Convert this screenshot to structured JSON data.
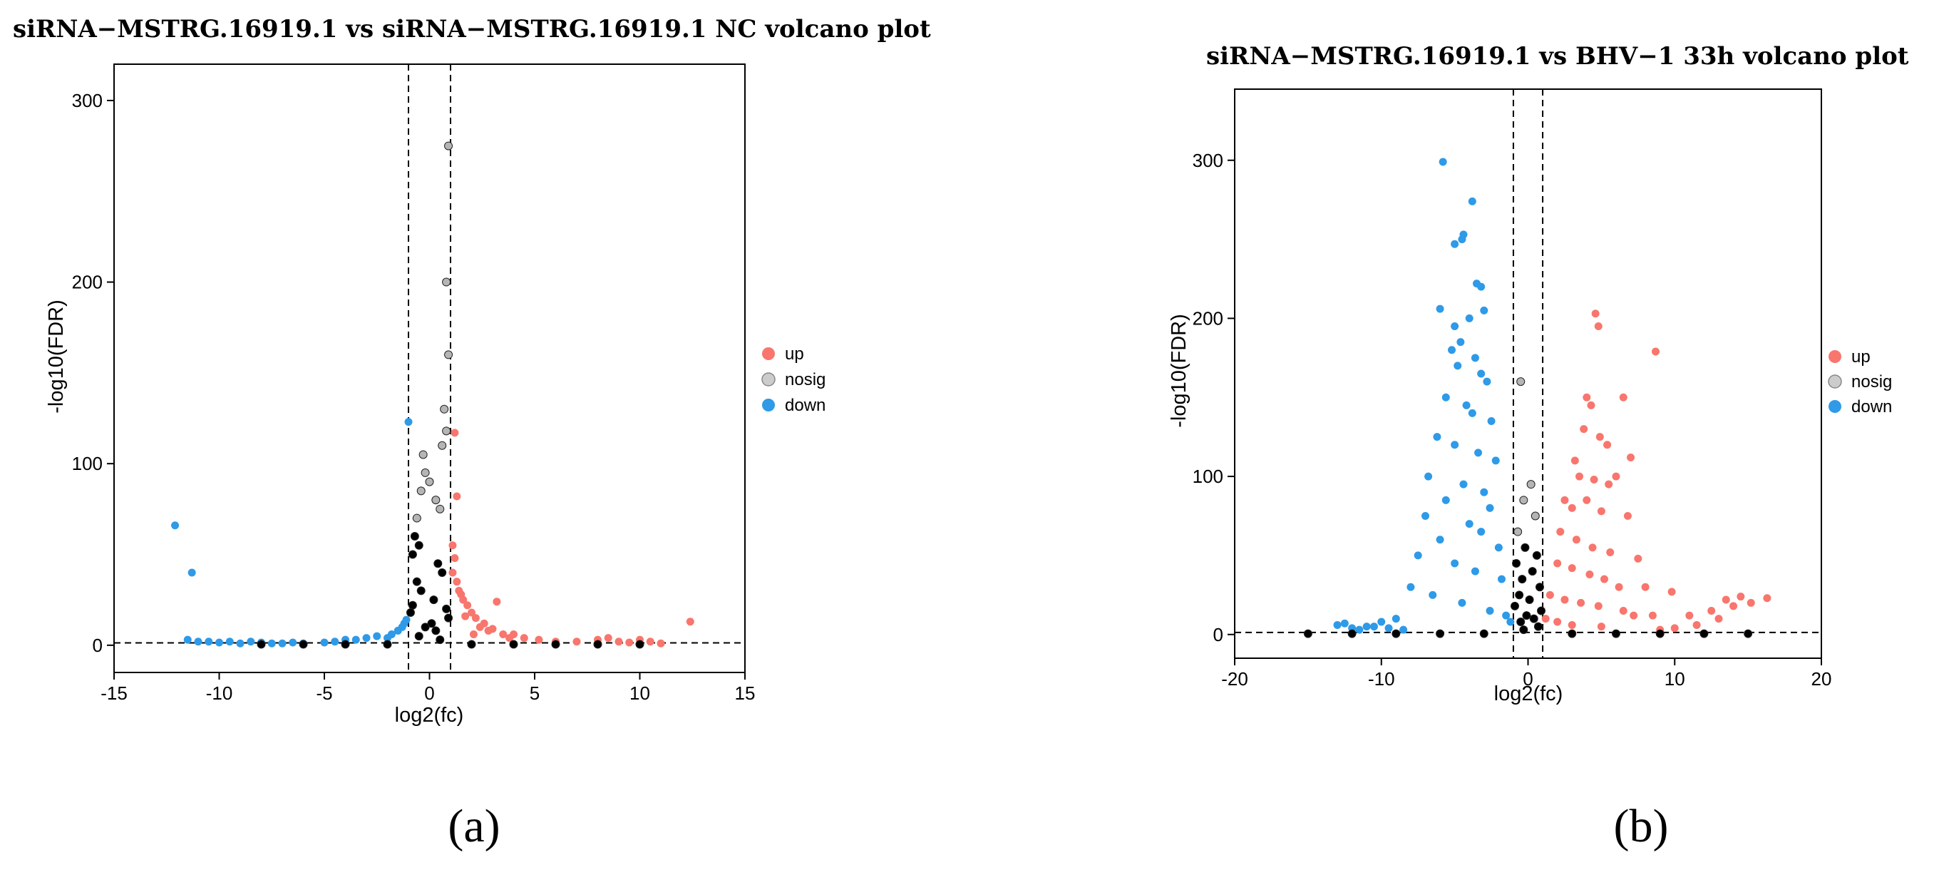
{
  "figure": {
    "panel_labels": [
      "(a)",
      "(b)"
    ]
  },
  "colors": {
    "up": "#f8766d",
    "nosig": "#000000",
    "down": "#2e9ae8"
  },
  "chart_data": [
    {
      "type": "scatter",
      "title": "siRNA−MSTRG.16919.1 vs siRNA−MSTRG.16919.1 NC volcano plot",
      "xlabel": "log2(fc)",
      "ylabel": "-log10(FDR)",
      "xlim": [
        -15,
        15
      ],
      "ylim": [
        -15,
        320
      ],
      "xticks": [
        -15,
        -10,
        -5,
        0,
        5,
        10,
        15
      ],
      "yticks": [
        0,
        100,
        200,
        300
      ],
      "thresholds": {
        "vertical": [
          -1,
          1
        ],
        "horizontal": 1.3
      },
      "grid": false,
      "legend": {
        "position": "right",
        "entries": [
          "up",
          "nosig",
          "down"
        ]
      },
      "series": [
        {
          "name": "up",
          "color": "#f8766d",
          "points": [
            [
              1.1,
              40
            ],
            [
              1.3,
              35
            ],
            [
              1.5,
              28
            ],
            [
              1.8,
              22
            ],
            [
              2.0,
              18
            ],
            [
              2.2,
              15
            ],
            [
              2.6,
              12
            ],
            [
              3.0,
              9
            ],
            [
              3.5,
              6
            ],
            [
              1.2,
              48
            ],
            [
              1.4,
              30
            ],
            [
              1.6,
              25
            ],
            [
              2.4,
              10
            ],
            [
              2.8,
              8
            ],
            [
              3.2,
              24
            ],
            [
              4.0,
              6
            ],
            [
              4.5,
              4
            ],
            [
              5.2,
              3
            ],
            [
              6.0,
              2
            ],
            [
              7.0,
              2
            ],
            [
              8.0,
              3
            ],
            [
              8.5,
              4
            ],
            [
              9.0,
              2
            ],
            [
              9.5,
              1.5
            ],
            [
              10.0,
              3
            ],
            [
              10.5,
              2
            ],
            [
              11.0,
              1
            ],
            [
              12.4,
              13
            ],
            [
              1.2,
              117
            ],
            [
              1.3,
              82
            ],
            [
              1.1,
              55
            ],
            [
              1.7,
              16
            ],
            [
              2.1,
              6
            ],
            [
              3.8,
              4
            ]
          ]
        },
        {
          "name": "down",
          "color": "#2e9ae8",
          "points": [
            [
              -12.1,
              66
            ],
            [
              -11.3,
              40
            ],
            [
              -11.5,
              3
            ],
            [
              -11.0,
              2
            ],
            [
              -10.5,
              2
            ],
            [
              -10.0,
              1.5
            ],
            [
              -9.5,
              2
            ],
            [
              -9.0,
              1
            ],
            [
              -8.5,
              2
            ],
            [
              -8.0,
              1.5
            ],
            [
              -7.5,
              1
            ],
            [
              -7.0,
              1
            ],
            [
              -6.5,
              1.5
            ],
            [
              -6.0,
              1
            ],
            [
              -5.0,
              1.5
            ],
            [
              -4.5,
              2
            ],
            [
              -4.0,
              3
            ],
            [
              -3.5,
              3
            ],
            [
              -3.0,
              4
            ],
            [
              -2.5,
              5
            ],
            [
              -2.0,
              4
            ],
            [
              -1.8,
              6
            ],
            [
              -1.5,
              8
            ],
            [
              -1.3,
              10
            ],
            [
              -1.2,
              12
            ],
            [
              -1.1,
              14
            ],
            [
              -1.0,
              123
            ]
          ]
        },
        {
          "name": "nosig",
          "color": "#000000",
          "points": [
            [
              0.9,
              275
            ],
            [
              0.8,
              200
            ],
            [
              0.9,
              160
            ],
            [
              0.7,
              130
            ],
            [
              0.8,
              118
            ],
            [
              0.6,
              110
            ],
            [
              -0.3,
              105
            ],
            [
              -0.2,
              95
            ],
            [
              0.0,
              90
            ],
            [
              -0.4,
              85
            ],
            [
              0.3,
              80
            ],
            [
              0.5,
              75
            ],
            [
              -0.6,
              70
            ],
            [
              -0.7,
              60
            ],
            [
              -0.5,
              55
            ],
            [
              -0.8,
              50
            ],
            [
              0.4,
              45
            ],
            [
              0.6,
              40
            ],
            [
              -0.6,
              35
            ],
            [
              -0.4,
              30
            ],
            [
              0.2,
              25
            ],
            [
              -0.8,
              22
            ],
            [
              0.8,
              20
            ],
            [
              -0.9,
              18
            ],
            [
              0.9,
              15
            ],
            [
              0.1,
              12
            ],
            [
              -0.2,
              10
            ],
            [
              0.3,
              8
            ],
            [
              -0.5,
              5
            ],
            [
              0.5,
              3
            ],
            [
              -8.0,
              0.5
            ],
            [
              -6.0,
              0.5
            ],
            [
              -4.0,
              0.5
            ],
            [
              -2.0,
              0.5
            ],
            [
              2.0,
              0.5
            ],
            [
              4.0,
              0.5
            ],
            [
              6.0,
              0.5
            ],
            [
              8.0,
              0.5
            ],
            [
              10.0,
              0.5
            ]
          ]
        }
      ]
    },
    {
      "type": "scatter",
      "title": "siRNA−MSTRG.16919.1 vs BHV−1 33h volcano plot",
      "xlabel": "log2(fc)",
      "ylabel": "-log10(FDR)",
      "xlim": [
        -20,
        20
      ],
      "ylim": [
        -15,
        345
      ],
      "xticks": [
        -20,
        -10,
        0,
        10,
        20
      ],
      "yticks": [
        0,
        100,
        200,
        300
      ],
      "thresholds": {
        "vertical": [
          -1,
          1
        ],
        "horizontal": 1.3
      },
      "grid": false,
      "legend": {
        "position": "right",
        "entries": [
          "up",
          "nosig",
          "down"
        ]
      },
      "series": [
        {
          "name": "up",
          "color": "#f8766d",
          "points": [
            [
              4.6,
              203
            ],
            [
              4.8,
              195
            ],
            [
              8.7,
              179
            ],
            [
              4.0,
              150
            ],
            [
              4.3,
              145
            ],
            [
              6.5,
              150
            ],
            [
              3.8,
              130
            ],
            [
              4.9,
              125
            ],
            [
              5.4,
              120
            ],
            [
              3.2,
              110
            ],
            [
              7.0,
              112
            ],
            [
              3.5,
              100
            ],
            [
              4.5,
              98
            ],
            [
              5.5,
              95
            ],
            [
              6.0,
              100
            ],
            [
              2.5,
              85
            ],
            [
              3.0,
              80
            ],
            [
              4.0,
              85
            ],
            [
              5.0,
              78
            ],
            [
              6.8,
              75
            ],
            [
              2.2,
              65
            ],
            [
              3.3,
              60
            ],
            [
              4.4,
              55
            ],
            [
              5.6,
              52
            ],
            [
              7.5,
              48
            ],
            [
              2.0,
              45
            ],
            [
              3.0,
              42
            ],
            [
              4.2,
              38
            ],
            [
              5.2,
              35
            ],
            [
              6.2,
              30
            ],
            [
              8.0,
              30
            ],
            [
              9.8,
              27
            ],
            [
              1.5,
              25
            ],
            [
              2.5,
              22
            ],
            [
              3.6,
              20
            ],
            [
              4.8,
              18
            ],
            [
              6.5,
              15
            ],
            [
              7.2,
              12
            ],
            [
              8.5,
              12
            ],
            [
              11.0,
              12
            ],
            [
              12.5,
              15
            ],
            [
              13.5,
              22
            ],
            [
              14.5,
              24
            ],
            [
              15.2,
              20
            ],
            [
              16.3,
              23
            ],
            [
              1.2,
              10
            ],
            [
              2.0,
              8
            ],
            [
              3.0,
              6
            ],
            [
              5.0,
              5
            ],
            [
              10.0,
              4
            ],
            [
              11.5,
              6
            ],
            [
              13.0,
              10
            ],
            [
              14.0,
              18
            ],
            [
              9.0,
              3
            ]
          ]
        },
        {
          "name": "down",
          "color": "#2e9ae8",
          "points": [
            [
              -5.8,
              299
            ],
            [
              -3.8,
              274
            ],
            [
              -4.4,
              253
            ],
            [
              -4.5,
              250
            ],
            [
              -5.0,
              247
            ],
            [
              -3.5,
              222
            ],
            [
              -3.2,
              220
            ],
            [
              -6.0,
              206
            ],
            [
              -3.0,
              205
            ],
            [
              -4.0,
              200
            ],
            [
              -5.0,
              195
            ],
            [
              -4.6,
              185
            ],
            [
              -5.2,
              180
            ],
            [
              -3.6,
              175
            ],
            [
              -4.8,
              170
            ],
            [
              -3.2,
              165
            ],
            [
              -2.8,
              160
            ],
            [
              -5.6,
              150
            ],
            [
              -4.2,
              145
            ],
            [
              -3.8,
              140
            ],
            [
              -2.5,
              135
            ],
            [
              -6.2,
              125
            ],
            [
              -5.0,
              120
            ],
            [
              -3.4,
              115
            ],
            [
              -2.2,
              110
            ],
            [
              -6.8,
              100
            ],
            [
              -4.4,
              95
            ],
            [
              -3.0,
              90
            ],
            [
              -5.6,
              85
            ],
            [
              -2.6,
              80
            ],
            [
              -7.0,
              75
            ],
            [
              -4.0,
              70
            ],
            [
              -3.2,
              65
            ],
            [
              -6.0,
              60
            ],
            [
              -2.0,
              55
            ],
            [
              -7.5,
              50
            ],
            [
              -5.0,
              45
            ],
            [
              -3.6,
              40
            ],
            [
              -1.8,
              35
            ],
            [
              -8.0,
              30
            ],
            [
              -6.5,
              25
            ],
            [
              -4.5,
              20
            ],
            [
              -2.6,
              15
            ],
            [
              -1.5,
              12
            ],
            [
              -9.0,
              10
            ],
            [
              -10.0,
              8
            ],
            [
              -11.0,
              5
            ],
            [
              -12.5,
              7
            ],
            [
              -13.0,
              6
            ],
            [
              -12.0,
              4
            ],
            [
              -11.5,
              3
            ],
            [
              -10.5,
              5
            ],
            [
              -9.5,
              4
            ],
            [
              -8.5,
              3
            ],
            [
              -1.2,
              8
            ]
          ]
        },
        {
          "name": "nosig",
          "color": "#000000",
          "points": [
            [
              -0.5,
              160
            ],
            [
              0.2,
              95
            ],
            [
              -0.3,
              85
            ],
            [
              0.5,
              75
            ],
            [
              -0.7,
              65
            ],
            [
              -0.2,
              55
            ],
            [
              0.6,
              50
            ],
            [
              -0.8,
              45
            ],
            [
              0.3,
              40
            ],
            [
              -0.4,
              35
            ],
            [
              0.8,
              30
            ],
            [
              -0.6,
              25
            ],
            [
              0.1,
              22
            ],
            [
              -0.9,
              18
            ],
            [
              0.9,
              15
            ],
            [
              -0.1,
              12
            ],
            [
              0.4,
              10
            ],
            [
              -0.5,
              8
            ],
            [
              0.7,
              5
            ],
            [
              -0.3,
              3
            ],
            [
              -15.0,
              0.5
            ],
            [
              -12.0,
              0.5
            ],
            [
              -9.0,
              0.5
            ],
            [
              -6.0,
              0.5
            ],
            [
              -3.0,
              0.5
            ],
            [
              3.0,
              0.5
            ],
            [
              6.0,
              0.5
            ],
            [
              9.0,
              0.5
            ],
            [
              12.0,
              0.5
            ],
            [
              15.0,
              0.5
            ]
          ]
        }
      ]
    }
  ]
}
